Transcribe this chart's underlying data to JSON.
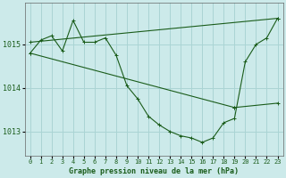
{
  "title": "Graphe pression niveau de la mer (hPa)",
  "background_color": "#cceaea",
  "grid_color": "#aad4d4",
  "line_color": "#1a5c1a",
  "xlim": [
    -0.5,
    23.5
  ],
  "ylim": [
    1012.45,
    1015.95
  ],
  "yticks": [
    1013,
    1014,
    1015
  ],
  "xticks": [
    0,
    1,
    2,
    3,
    4,
    5,
    6,
    7,
    8,
    9,
    10,
    11,
    12,
    13,
    14,
    15,
    16,
    17,
    18,
    19,
    20,
    21,
    22,
    23
  ],
  "series": [
    {
      "x": [
        0,
        1,
        2,
        3,
        4,
        5,
        6,
        7,
        8,
        9,
        10,
        11,
        12,
        13,
        14,
        15,
        16,
        17,
        18,
        19,
        20,
        21,
        22,
        23
      ],
      "y": [
        1014.8,
        1015.1,
        1015.2,
        1014.85,
        1015.55,
        1015.05,
        1015.05,
        1015.15,
        1014.75,
        1014.05,
        1013.75,
        1013.35,
        1013.15,
        1013.0,
        1012.9,
        1012.85,
        1012.75,
        1012.85,
        1013.2,
        1013.3,
        1014.6,
        1015.0,
        1015.15,
        1015.6
      ]
    },
    {
      "x": [
        0,
        23
      ],
      "y": [
        1015.05,
        1015.6
      ]
    },
    {
      "x": [
        0,
        19
      ],
      "y": [
        1014.8,
        1013.55
      ]
    },
    {
      "x": [
        19,
        23
      ],
      "y": [
        1013.55,
        1013.65
      ]
    }
  ]
}
